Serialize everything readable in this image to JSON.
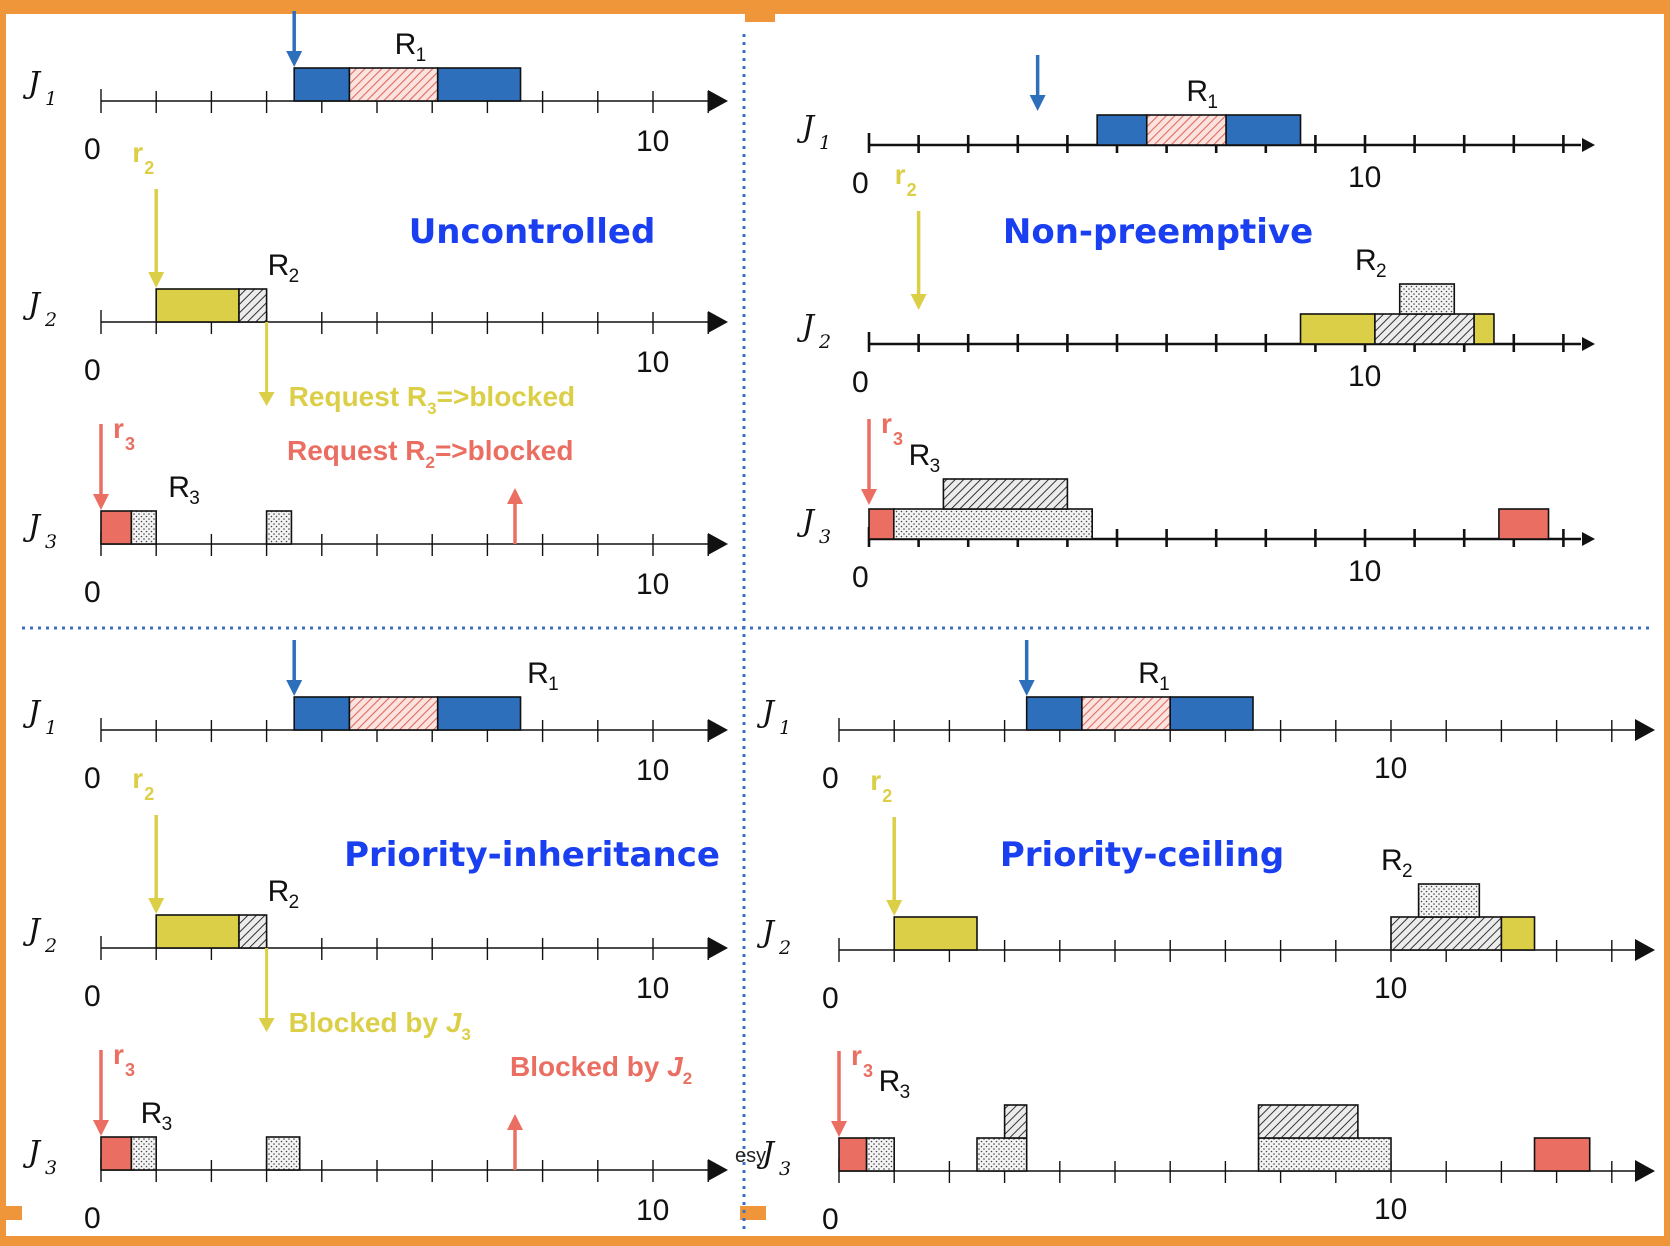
{
  "colors": {
    "j1_exec": "#2e6fbb",
    "j1_resource": "#e06a5e",
    "j2_exec": "#dccf48",
    "j2_release": "#dccf48",
    "j3_exec": "#ea6f62",
    "j3_release": "#ea6f62",
    "title": "#1a3ff0",
    "divider": "#3d6fc4",
    "frame": "#f0963a"
  },
  "labels": {
    "j1": "J",
    "j1_sub": "1",
    "j2": "J",
    "j2_sub": "2",
    "j3": "J",
    "j3_sub": "3",
    "r1": "R",
    "r1_sub": "1",
    "r2": "R",
    "r2_sub": "2",
    "r3": "R",
    "r3_sub": "3",
    "rel2": "r",
    "rel2_sub": "2",
    "rel3": "r",
    "rel3_sub": "3",
    "axis_zero": "0",
    "axis_ten": "10"
  },
  "stray_text": "esy",
  "chart_data": [
    {
      "type": "gantt",
      "title": "Uncontrolled",
      "rows": [
        {
          "job": "J1",
          "release": 3.5,
          "blocks": [
            {
              "start": 3.5,
              "end": 4.5,
              "kind": "exec"
            },
            {
              "start": 4.5,
              "end": 6.1,
              "kind": "R1"
            },
            {
              "start": 6.1,
              "end": 7.6,
              "kind": "exec"
            }
          ],
          "resource_label": {
            "text": "R",
            "sub": "1",
            "at": 5.5
          }
        },
        {
          "job": "J2",
          "release": 1,
          "blocks": [
            {
              "start": 1,
              "end": 2.5,
              "kind": "exec"
            },
            {
              "start": 2.5,
              "end": 3,
              "kind": "R2"
            }
          ],
          "resource_label": {
            "text": "R",
            "sub": "2",
            "at": 3.2
          },
          "note": {
            "text": "Request R",
            "sub": "3",
            "tail": "=>blocked",
            "color": "yellow"
          }
        },
        {
          "job": "J3",
          "release": 0,
          "blocks": [
            {
              "start": 0,
              "end": 0.55,
              "kind": "exec"
            },
            {
              "start": 0.55,
              "end": 1,
              "kind": "R3"
            },
            {
              "start": 3,
              "end": 3.45,
              "kind": "R3"
            }
          ],
          "resource_label": {
            "text": "R",
            "sub": "3",
            "at": 1.4
          },
          "note": {
            "text": "Request R",
            "sub": "2",
            "tail": "=>blocked",
            "color": "red"
          },
          "up_arrow": 7.5
        }
      ]
    },
    {
      "type": "gantt",
      "title": "Non-preemptive",
      "rows": [
        {
          "job": "J1",
          "release": 3.4,
          "blocks": [
            {
              "start": 4.6,
              "end": 5.6,
              "kind": "exec"
            },
            {
              "start": 5.6,
              "end": 7.2,
              "kind": "R1"
            },
            {
              "start": 7.2,
              "end": 8.7,
              "kind": "exec"
            }
          ],
          "resource_label": {
            "text": "R",
            "sub": "1",
            "at": 6.6
          }
        },
        {
          "job": "J2",
          "release": 1,
          "blocks": [
            {
              "start": 8.7,
              "end": 10.2,
              "kind": "exec"
            },
            {
              "start": 10.2,
              "end": 12.2,
              "kind": "R2"
            },
            {
              "start": 10.7,
              "end": 11.8,
              "kind": "R3",
              "level": 2
            },
            {
              "start": 12.2,
              "end": 12.6,
              "kind": "exec"
            }
          ],
          "resource_label": {
            "text": "R",
            "sub": "2",
            "at": 10.0
          }
        },
        {
          "job": "J3",
          "release": 0,
          "blocks": [
            {
              "start": 0,
              "end": 0.5,
              "kind": "exec"
            },
            {
              "start": 0.5,
              "end": 4.5,
              "kind": "R3"
            },
            {
              "start": 1.5,
              "end": 4.0,
              "kind": "R2",
              "level": 2
            },
            {
              "start": 12.7,
              "end": 13.7,
              "kind": "exec"
            }
          ],
          "resource_label": {
            "text": "R",
            "sub": "3",
            "at": 1.0
          }
        }
      ]
    },
    {
      "type": "gantt",
      "title": "Priority-inheritance",
      "rows": [
        {
          "job": "J1",
          "release": 3.5,
          "blocks": [
            {
              "start": 3.5,
              "end": 4.5,
              "kind": "exec"
            },
            {
              "start": 4.5,
              "end": 6.1,
              "kind": "R1"
            },
            {
              "start": 6.1,
              "end": 7.6,
              "kind": "exec"
            }
          ],
          "resource_label": {
            "text": "R",
            "sub": "1",
            "at": 7.9
          }
        },
        {
          "job": "J2",
          "release": 1,
          "blocks": [
            {
              "start": 1,
              "end": 2.5,
              "kind": "exec"
            },
            {
              "start": 2.5,
              "end": 3,
              "kind": "R2"
            }
          ],
          "resource_label": {
            "text": "R",
            "sub": "2",
            "at": 3.2
          },
          "note": {
            "text": "Blocked by ",
            "job": "J",
            "sub": "3",
            "color": "yellow"
          }
        },
        {
          "job": "J3",
          "release": 0,
          "blocks": [
            {
              "start": 0,
              "end": 0.55,
              "kind": "exec"
            },
            {
              "start": 0.55,
              "end": 1,
              "kind": "R3"
            },
            {
              "start": 3,
              "end": 3.6,
              "kind": "R3"
            }
          ],
          "resource_label": {
            "text": "R",
            "sub": "3",
            "at": 0.9
          },
          "note": {
            "text": "Blocked by ",
            "job": "J",
            "sub": "2",
            "color": "red"
          },
          "up_arrow": 7.5
        }
      ]
    },
    {
      "type": "gantt",
      "title": "Priority-ceiling",
      "rows": [
        {
          "job": "J1",
          "release": 3.4,
          "blocks": [
            {
              "start": 3.4,
              "end": 4.4,
              "kind": "exec"
            },
            {
              "start": 4.4,
              "end": 6.0,
              "kind": "R1"
            },
            {
              "start": 6.0,
              "end": 7.5,
              "kind": "exec"
            }
          ],
          "resource_label": {
            "text": "R",
            "sub": "1",
            "at": 5.6
          }
        },
        {
          "job": "J2",
          "release": 1,
          "blocks": [
            {
              "start": 1,
              "end": 2.5,
              "kind": "exec"
            },
            {
              "start": 10,
              "end": 12,
              "kind": "R2"
            },
            {
              "start": 10.5,
              "end": 11.6,
              "kind": "R3",
              "level": 2
            },
            {
              "start": 12,
              "end": 12.6,
              "kind": "exec"
            }
          ],
          "resource_label": {
            "text": "R",
            "sub": "2",
            "at": 10.0
          }
        },
        {
          "job": "J3",
          "release": 0,
          "blocks": [
            {
              "start": 0,
              "end": 0.5,
              "kind": "exec"
            },
            {
              "start": 0.5,
              "end": 1,
              "kind": "R3"
            },
            {
              "start": 2.5,
              "end": 3.4,
              "kind": "R3"
            },
            {
              "start": 3.0,
              "end": 3.4,
              "kind": "R2",
              "level": 2
            },
            {
              "start": 7.6,
              "end": 10,
              "kind": "R3"
            },
            {
              "start": 7.6,
              "end": 9.4,
              "kind": "R2",
              "level": 2
            },
            {
              "start": 12.6,
              "end": 13.6,
              "kind": "exec"
            }
          ],
          "resource_label": {
            "text": "R",
            "sub": "3",
            "at": 0.9
          }
        }
      ]
    }
  ]
}
